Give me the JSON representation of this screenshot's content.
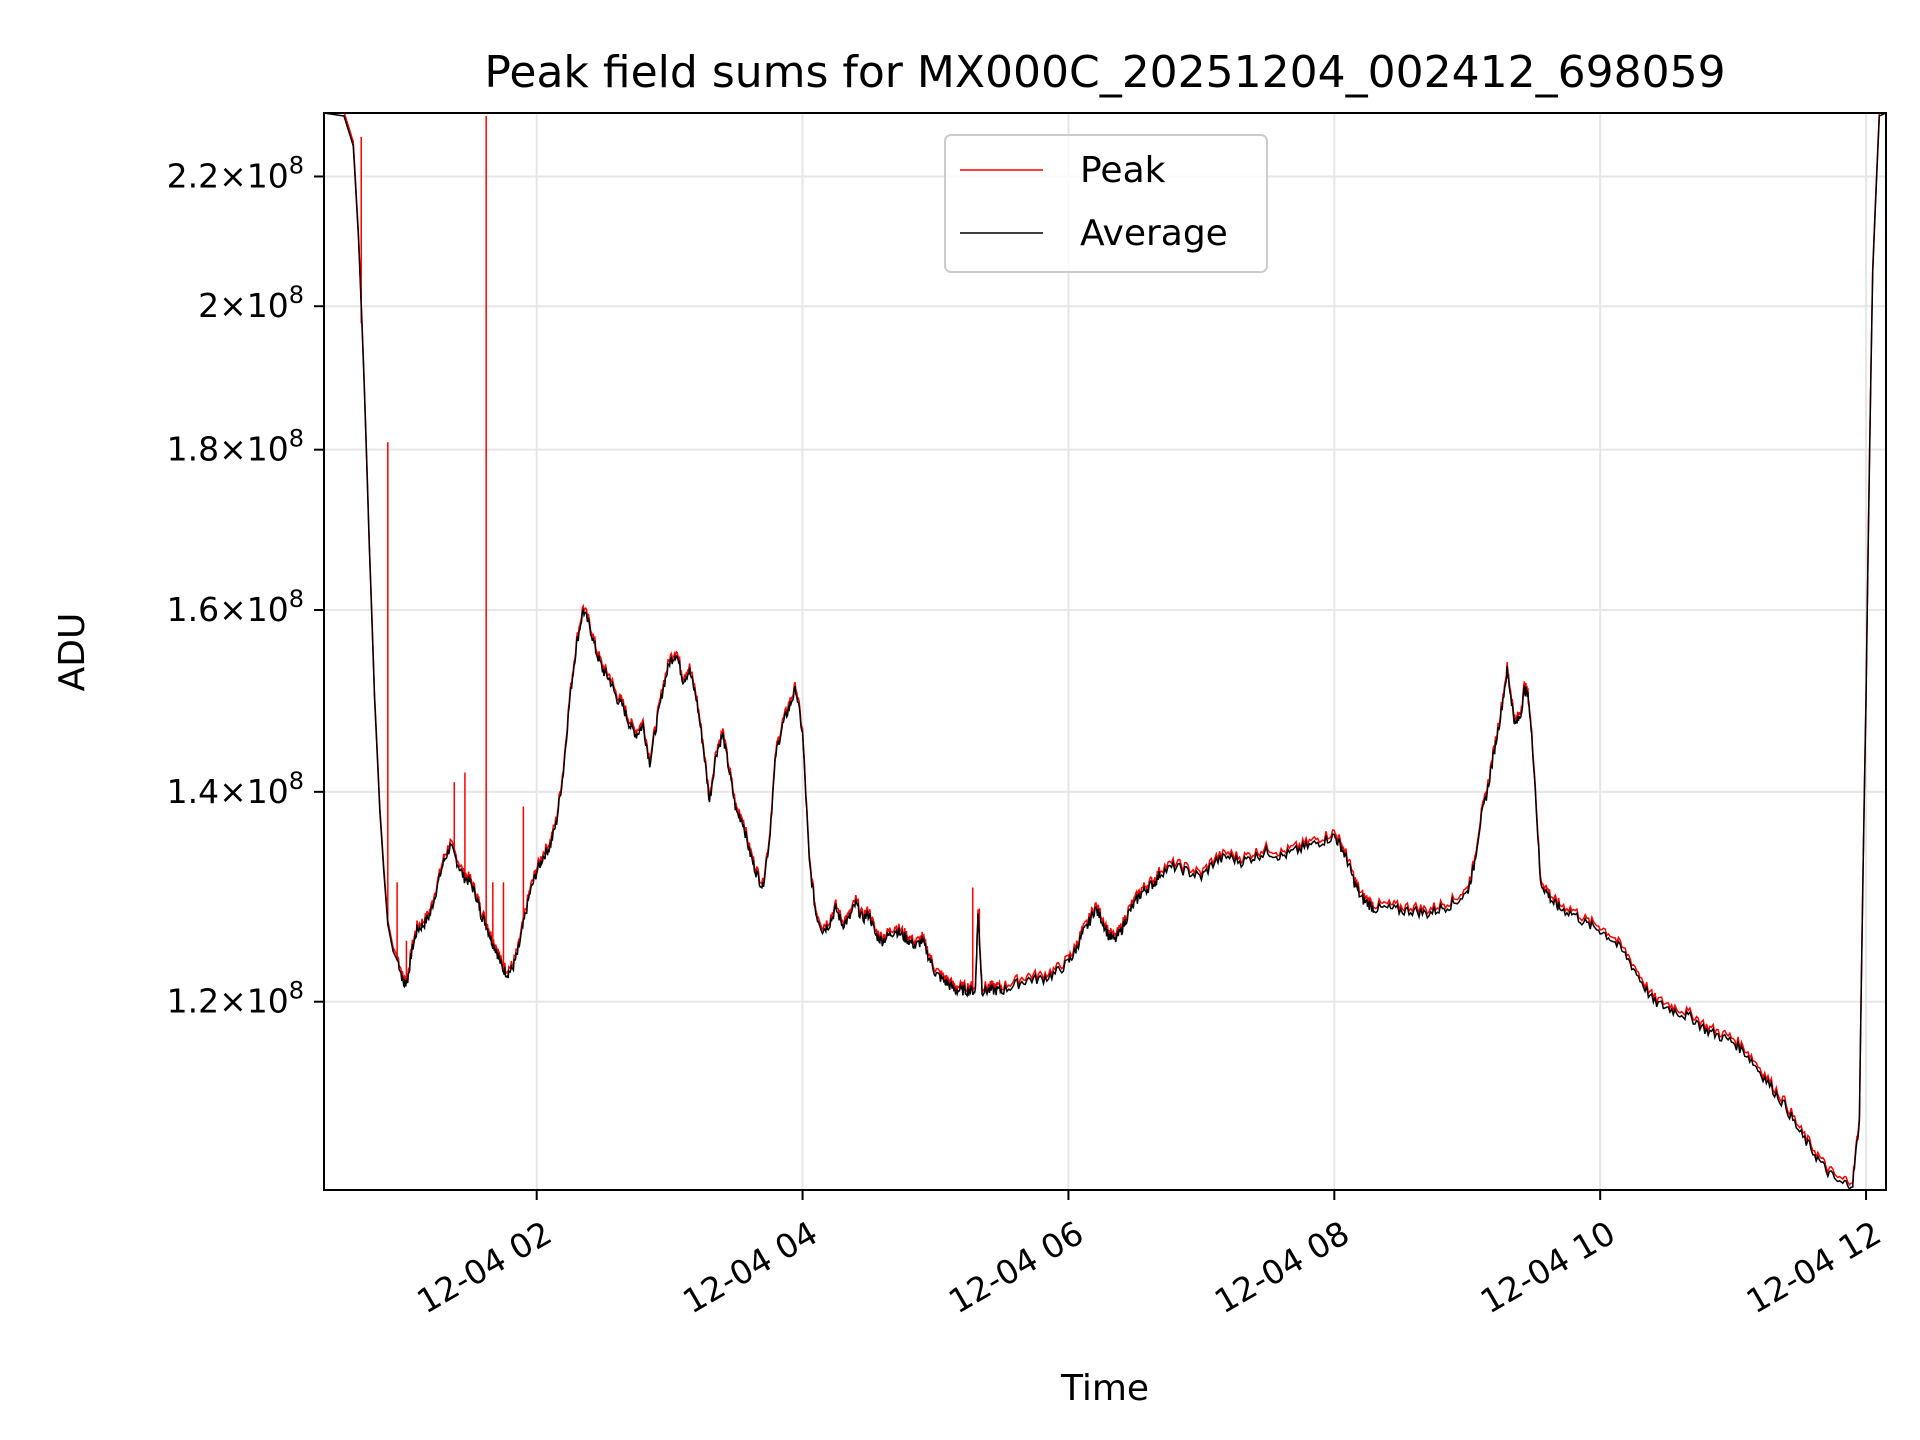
{
  "chart_data": {
    "type": "line",
    "title": "Peak field sums for MX000C_20251204_002412_698059",
    "xlabel": "Time",
    "ylabel": "ADU",
    "xlim": [
      0.4,
      12.15
    ],
    "ylim": [
      1.045,
      2.305
    ],
    "yscale": "log",
    "grid": true,
    "legend_position": "top-center",
    "x_ticks": [
      {
        "value": 2,
        "label": "12-04 02"
      },
      {
        "value": 4,
        "label": "12-04 04"
      },
      {
        "value": 6,
        "label": "12-04 06"
      },
      {
        "value": 8,
        "label": "12-04 08"
      },
      {
        "value": 10,
        "label": "12-04 10"
      },
      {
        "value": 12,
        "label": "12-04 12"
      }
    ],
    "y_ticks": [
      {
        "value": 1.2,
        "mantissa": "1.2",
        "exponent": "8"
      },
      {
        "value": 1.4,
        "mantissa": "1.4",
        "exponent": "8"
      },
      {
        "value": 1.6,
        "mantissa": "1.6",
        "exponent": "8"
      },
      {
        "value": 1.8,
        "mantissa": "1.8",
        "exponent": "8"
      },
      {
        "value": 2.0,
        "mantissa": "2",
        "exponent": "8"
      },
      {
        "value": 2.2,
        "mantissa": "2.2",
        "exponent": "8"
      }
    ],
    "y_units_note": "values in units of 1e8 ADU",
    "series": [
      {
        "name": "Average",
        "color": "#000000",
        "x": [
          0.4,
          0.55,
          0.62,
          0.66,
          0.7,
          0.74,
          0.78,
          0.82,
          0.85,
          0.88,
          0.92,
          0.96,
          1.0,
          1.03,
          1.06,
          1.1,
          1.15,
          1.2,
          1.25,
          1.3,
          1.35,
          1.4,
          1.45,
          1.5,
          1.55,
          1.58,
          1.62,
          1.66,
          1.7,
          1.74,
          1.78,
          1.82,
          1.86,
          1.9,
          1.95,
          2.0,
          2.05,
          2.1,
          2.15,
          2.2,
          2.25,
          2.3,
          2.35,
          2.4,
          2.45,
          2.5,
          2.55,
          2.6,
          2.65,
          2.7,
          2.75,
          2.8,
          2.85,
          2.9,
          2.95,
          3.0,
          3.05,
          3.1,
          3.15,
          3.2,
          3.25,
          3.3,
          3.35,
          3.4,
          3.45,
          3.5,
          3.55,
          3.6,
          3.65,
          3.7,
          3.75,
          3.8,
          3.85,
          3.9,
          3.95,
          4.0,
          4.05,
          4.1,
          4.15,
          4.2,
          4.25,
          4.3,
          4.35,
          4.4,
          4.45,
          4.5,
          4.55,
          4.6,
          4.65,
          4.7,
          4.75,
          4.8,
          4.85,
          4.9,
          4.95,
          5.0,
          5.05,
          5.1,
          5.15,
          5.2,
          5.25,
          5.3,
          5.32,
          5.35,
          5.4,
          5.45,
          5.5,
          5.6,
          5.7,
          5.8,
          5.9,
          6.0,
          6.05,
          6.1,
          6.15,
          6.2,
          6.25,
          6.3,
          6.35,
          6.4,
          6.45,
          6.5,
          6.55,
          6.6,
          6.65,
          6.7,
          6.8,
          6.9,
          7.0,
          7.1,
          7.2,
          7.3,
          7.4,
          7.5,
          7.6,
          7.7,
          7.8,
          7.9,
          8.0,
          8.05,
          8.1,
          8.15,
          8.2,
          8.25,
          8.3,
          8.4,
          8.5,
          8.6,
          8.7,
          8.8,
          8.9,
          9.0,
          9.05,
          9.1,
          9.15,
          9.2,
          9.25,
          9.3,
          9.33,
          9.36,
          9.4,
          9.43,
          9.46,
          9.5,
          9.55,
          9.6,
          9.65,
          9.7,
          9.8,
          9.9,
          10.0,
          10.1,
          10.2,
          10.3,
          10.4,
          10.5,
          10.6,
          10.7,
          10.8,
          10.9,
          11.0,
          11.1,
          11.2,
          11.3,
          11.4,
          11.5,
          11.6,
          11.7,
          11.8,
          11.9,
          11.95,
          12.0,
          12.05,
          12.1,
          12.15
        ],
        "y": [
          2.305,
          2.3,
          2.25,
          2.1,
          1.9,
          1.68,
          1.5,
          1.38,
          1.32,
          1.27,
          1.245,
          1.235,
          1.215,
          1.22,
          1.245,
          1.265,
          1.27,
          1.28,
          1.305,
          1.33,
          1.345,
          1.33,
          1.315,
          1.31,
          1.295,
          1.28,
          1.27,
          1.255,
          1.245,
          1.23,
          1.225,
          1.23,
          1.245,
          1.27,
          1.3,
          1.32,
          1.335,
          1.345,
          1.37,
          1.42,
          1.5,
          1.56,
          1.6,
          1.58,
          1.55,
          1.53,
          1.52,
          1.5,
          1.49,
          1.47,
          1.46,
          1.47,
          1.43,
          1.47,
          1.51,
          1.54,
          1.55,
          1.52,
          1.53,
          1.5,
          1.45,
          1.39,
          1.44,
          1.46,
          1.42,
          1.38,
          1.37,
          1.34,
          1.32,
          1.305,
          1.35,
          1.44,
          1.47,
          1.49,
          1.51,
          1.46,
          1.33,
          1.28,
          1.265,
          1.27,
          1.285,
          1.27,
          1.275,
          1.29,
          1.275,
          1.28,
          1.26,
          1.255,
          1.26,
          1.265,
          1.26,
          1.255,
          1.25,
          1.255,
          1.24,
          1.225,
          1.22,
          1.215,
          1.21,
          1.21,
          1.21,
          1.21,
          1.28,
          1.21,
          1.21,
          1.21,
          1.21,
          1.215,
          1.22,
          1.22,
          1.225,
          1.235,
          1.245,
          1.26,
          1.27,
          1.285,
          1.275,
          1.26,
          1.255,
          1.265,
          1.28,
          1.29,
          1.3,
          1.305,
          1.31,
          1.32,
          1.325,
          1.32,
          1.315,
          1.33,
          1.335,
          1.33,
          1.335,
          1.34,
          1.335,
          1.34,
          1.345,
          1.35,
          1.355,
          1.345,
          1.33,
          1.31,
          1.295,
          1.29,
          1.285,
          1.285,
          1.283,
          1.283,
          1.28,
          1.285,
          1.29,
          1.3,
          1.325,
          1.37,
          1.4,
          1.44,
          1.48,
          1.53,
          1.5,
          1.47,
          1.48,
          1.51,
          1.5,
          1.43,
          1.31,
          1.3,
          1.29,
          1.285,
          1.28,
          1.27,
          1.265,
          1.255,
          1.24,
          1.22,
          1.2,
          1.195,
          1.19,
          1.185,
          1.175,
          1.17,
          1.165,
          1.155,
          1.14,
          1.125,
          1.11,
          1.09,
          1.075,
          1.06,
          1.05,
          1.05,
          1.1,
          1.5,
          2.05,
          2.3,
          2.305
        ]
      },
      {
        "name": "Peak",
        "color": "#ff0000",
        "spikes": [
          {
            "x": 0.68,
            "y": 2.265
          },
          {
            "x": 0.88,
            "y": 1.81
          },
          {
            "x": 0.95,
            "y": 1.31
          },
          {
            "x": 1.02,
            "y": 1.255
          },
          {
            "x": 1.38,
            "y": 1.41
          },
          {
            "x": 1.46,
            "y": 1.42
          },
          {
            "x": 1.62,
            "y": 2.3
          },
          {
            "x": 1.67,
            "y": 1.31
          },
          {
            "x": 1.75,
            "y": 1.31
          },
          {
            "x": 1.9,
            "y": 1.385
          },
          {
            "x": 5.28,
            "y": 1.305
          },
          {
            "x": 5.33,
            "y": 1.285
          }
        ]
      }
    ]
  }
}
